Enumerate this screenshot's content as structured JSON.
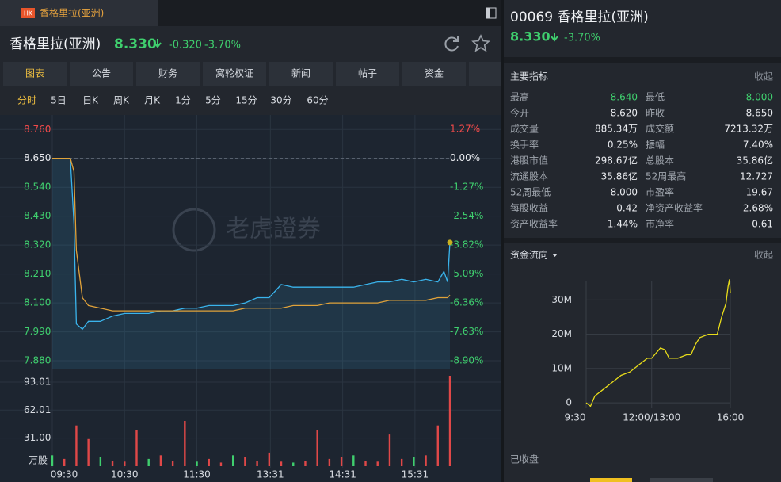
{
  "tab": {
    "badge": "HK",
    "title": "香格里拉(亚洲)"
  },
  "header": {
    "name": "香格里拉(亚洲)",
    "price": "8.330",
    "change": "-0.320",
    "change_pct": "-3.70%"
  },
  "nav_tabs": [
    "图表",
    "公告",
    "财务",
    "窝轮权证",
    "新闻",
    "帖子",
    "资金"
  ],
  "periods": [
    "分时",
    "5日",
    "日K",
    "周K",
    "月K",
    "1分",
    "5分",
    "15分",
    "30分",
    "60分"
  ],
  "watermark": "老虎證券",
  "chart_data": [
    {
      "type": "line",
      "x": [
        0,
        10,
        15,
        18,
        20,
        25,
        30,
        40,
        50,
        60,
        70,
        80,
        90,
        100,
        110,
        120,
        130,
        140,
        150,
        160,
        170,
        180,
        190,
        200,
        210,
        220,
        230,
        240,
        250,
        260,
        270,
        280,
        290,
        300,
        310,
        320,
        325,
        328,
        330
      ],
      "xlim": [
        0,
        330
      ],
      "xticks": [
        {
          "value": 0,
          "label": "09:30"
        },
        {
          "value": 60,
          "label": "10:30"
        },
        {
          "value": 120,
          "label": "11:30"
        },
        {
          "value": 181,
          "label": "13:31"
        },
        {
          "value": 241,
          "label": "14:31"
        },
        {
          "value": 301,
          "label": "15:31"
        }
      ],
      "ylim": [
        7.85,
        8.8
      ],
      "yticks": [
        {
          "value": 8.76,
          "label": "8.760"
        },
        {
          "value": 8.65,
          "label": "8.650"
        },
        {
          "value": 8.54,
          "label": "8.540"
        },
        {
          "value": 8.43,
          "label": "8.430"
        },
        {
          "value": 8.32,
          "label": "8.320"
        },
        {
          "value": 8.21,
          "label": "8.210"
        },
        {
          "value": 8.1,
          "label": "8.100"
        },
        {
          "value": 7.99,
          "label": "7.990"
        },
        {
          "value": 7.88,
          "label": "7.880"
        }
      ],
      "y2lim": [
        -9.25,
        1.73
      ],
      "y2ticks": [
        {
          "value": 1.27,
          "label": "1.27%"
        },
        {
          "value": 0,
          "label": "0.00%"
        },
        {
          "value": -1.27,
          "label": "-1.27%"
        },
        {
          "value": -2.54,
          "label": "-2.54%"
        },
        {
          "value": -3.82,
          "label": "-3.82%"
        },
        {
          "value": -5.09,
          "label": "-5.09%"
        },
        {
          "value": -6.36,
          "label": "-6.36%"
        },
        {
          "value": -7.63,
          "label": "-7.63%"
        },
        {
          "value": -8.9,
          "label": "-8.90%"
        }
      ],
      "prev_close": 8.65,
      "grid": true,
      "series": [
        {
          "color": "#3ab4ec",
          "values": [
            8.65,
            8.65,
            8.65,
            8.4,
            8.02,
            8.0,
            8.03,
            8.03,
            8.05,
            8.06,
            8.06,
            8.06,
            8.07,
            8.07,
            8.08,
            8.08,
            8.09,
            8.09,
            8.09,
            8.1,
            8.12,
            8.12,
            8.17,
            8.16,
            8.16,
            8.16,
            8.16,
            8.16,
            8.16,
            8.17,
            8.18,
            8.18,
            8.19,
            8.18,
            8.19,
            8.18,
            8.22,
            8.18,
            8.33
          ]
        },
        {
          "color": "#e0a23a",
          "values": [
            8.65,
            8.65,
            8.65,
            8.6,
            8.3,
            8.12,
            8.09,
            8.08,
            8.07,
            8.07,
            8.07,
            8.07,
            8.07,
            8.07,
            8.07,
            8.07,
            8.07,
            8.07,
            8.07,
            8.08,
            8.08,
            8.08,
            8.08,
            8.09,
            8.09,
            8.09,
            8.1,
            8.1,
            8.1,
            8.1,
            8.1,
            8.11,
            8.11,
            8.11,
            8.11,
            8.12,
            8.12,
            8.12,
            8.13
          ]
        }
      ],
      "volume": {
        "unit": "万股",
        "x": [
          0,
          10,
          20,
          30,
          40,
          50,
          60,
          70,
          80,
          90,
          100,
          110,
          120,
          130,
          140,
          150,
          160,
          170,
          180,
          190,
          200,
          210,
          220,
          230,
          240,
          250,
          260,
          270,
          280,
          290,
          300,
          310,
          320,
          330
        ],
        "values": [
          12,
          8,
          45,
          30,
          10,
          6,
          5,
          40,
          8,
          12,
          6,
          50,
          5,
          8,
          4,
          12,
          10,
          6,
          15,
          5,
          4,
          6,
          40,
          8,
          10,
          12,
          6,
          5,
          35,
          8,
          10,
          12,
          45,
          100
        ],
        "colors": [
          "#3fcf6e",
          "#e04848",
          "#e04848",
          "#e04848",
          "#3fcf6e",
          "#e04848",
          "#e04848",
          "#e04848",
          "#3fcf6e",
          "#e04848",
          "#e04848",
          "#e04848",
          "#3fcf6e",
          "#e04848",
          "#e04848",
          "#3fcf6e",
          "#e04848",
          "#e04848",
          "#e04848",
          "#e04848",
          "#3fcf6e",
          "#e04848",
          "#e04848",
          "#e04848",
          "#e04848",
          "#3fcf6e",
          "#e04848",
          "#e04848",
          "#e04848",
          "#e04848",
          "#3fcf6e",
          "#e04848",
          "#e04848",
          "#e04848"
        ],
        "ylim": [
          0,
          103.5
        ],
        "yticks": [
          93.01,
          62.01,
          {
            "value": 31,
            "label": "31.00"
          }
        ]
      }
    },
    {
      "type": "line",
      "title": "资金流向",
      "x": [
        0,
        10,
        20,
        40,
        60,
        80,
        100,
        120,
        140,
        150,
        170,
        180,
        190,
        210,
        230,
        240,
        250,
        260,
        280,
        300,
        310,
        320,
        325,
        328,
        330
      ],
      "xlim": [
        0,
        330
      ],
      "xticks": [
        {
          "value": 0,
          "label": "9:30"
        },
        {
          "value": 150,
          "label": "12:00/13:00"
        },
        {
          "value": 330,
          "label": "16:00"
        }
      ],
      "ylim": [
        -1.6,
        35.4
      ],
      "yticks": [
        0,
        {
          "value": 10,
          "label": "10M"
        },
        {
          "value": 20,
          "label": "20M"
        },
        {
          "value": 30,
          "label": "30M"
        }
      ],
      "grid": true,
      "series": [
        {
          "color": "#e8dc1a",
          "values": [
            0,
            -1,
            2,
            4,
            6,
            8,
            9,
            11,
            13,
            13,
            16,
            15.5,
            13,
            13,
            14,
            14,
            17,
            19,
            20,
            20,
            25,
            29,
            34,
            36,
            32
          ]
        }
      ]
    }
  ],
  "side": {
    "code_name": "00069 香格里拉(亚洲)",
    "price": "8.330",
    "change_pct": "-3.70%",
    "indicators_title": "主要指标",
    "collapse": "收起",
    "indicators": [
      [
        {
          "label": "最高",
          "value": "8.640",
          "color": "#3fcf6e"
        },
        {
          "label": "最低",
          "value": "8.000",
          "color": "#3fcf6e"
        }
      ],
      [
        {
          "label": "今开",
          "value": "8.620"
        },
        {
          "label": "昨收",
          "value": "8.650"
        }
      ],
      [
        {
          "label": "成交量",
          "value": "885.34万"
        },
        {
          "label": "成交额",
          "value": "7213.32万"
        }
      ],
      [
        {
          "label": "换手率",
          "value": "0.25%"
        },
        {
          "label": "振幅",
          "value": "7.40%"
        }
      ],
      [
        {
          "label": "港股市值",
          "value": "298.67亿"
        },
        {
          "label": "总股本",
          "value": "35.86亿"
        }
      ],
      [
        {
          "label": "流通股本",
          "value": "35.86亿"
        },
        {
          "label": "52周最高",
          "value": "12.727"
        }
      ],
      [
        {
          "label": "52周最低",
          "value": "8.000"
        },
        {
          "label": "市盈率",
          "value": "19.67"
        }
      ],
      [
        {
          "label": "每股收益",
          "value": "0.42"
        },
        {
          "label": "净资产收益率",
          "value": "2.68%"
        }
      ],
      [
        {
          "label": "资产收益率",
          "value": "1.44%"
        },
        {
          "label": "市净率",
          "value": "0.61"
        }
      ]
    ],
    "flow_collapse": "收起",
    "status": "已收盘"
  }
}
